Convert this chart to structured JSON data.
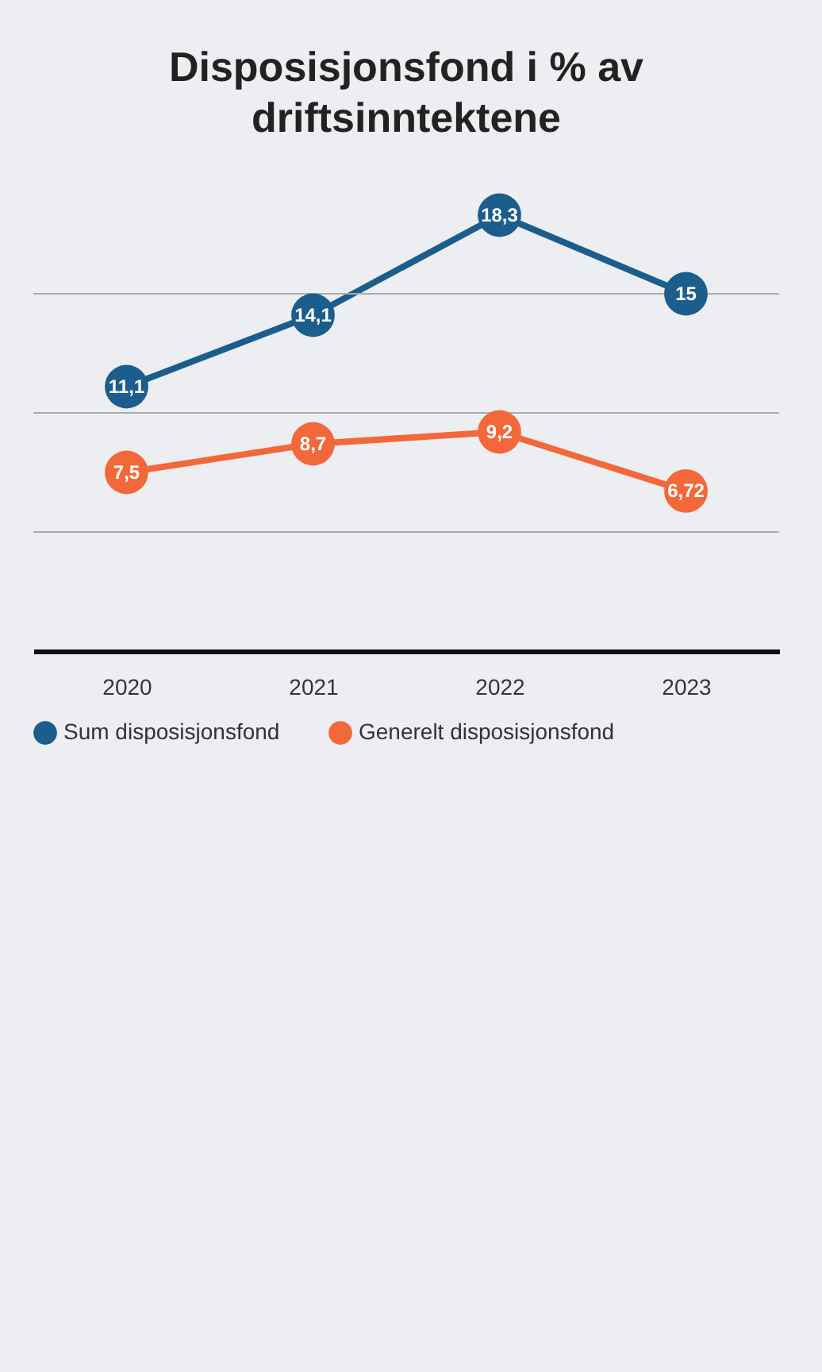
{
  "chart_data": {
    "type": "line",
    "title": "Disposisjonsfond i % av\ndriftsinntektene",
    "categories": [
      "2020",
      "2021",
      "2022",
      "2023"
    ],
    "series": [
      {
        "name": "Sum disposisjonsfond",
        "color": "#1b5d8c",
        "values": [
          11.1,
          14.1,
          18.3,
          15
        ],
        "value_labels": [
          "11,1",
          "14,1",
          "18,3",
          "15"
        ]
      },
      {
        "name": "Generelt disposisjonsfond",
        "color": "#f2683a",
        "values": [
          7.5,
          8.7,
          9.2,
          6.72
        ],
        "value_labels": [
          "7,5",
          "8,7",
          "9,2",
          "6,72"
        ]
      }
    ],
    "ref_lines": [
      {
        "axis": "y",
        "value": 5,
        "label": null,
        "color": "#a9abae"
      },
      {
        "axis": "y",
        "value": 10,
        "label": null,
        "color": "#a9abae"
      },
      {
        "axis": "y",
        "value": 15,
        "label": null,
        "color": "#a9abae"
      }
    ],
    "legend": "bottom",
    "marker": "circle"
  }
}
